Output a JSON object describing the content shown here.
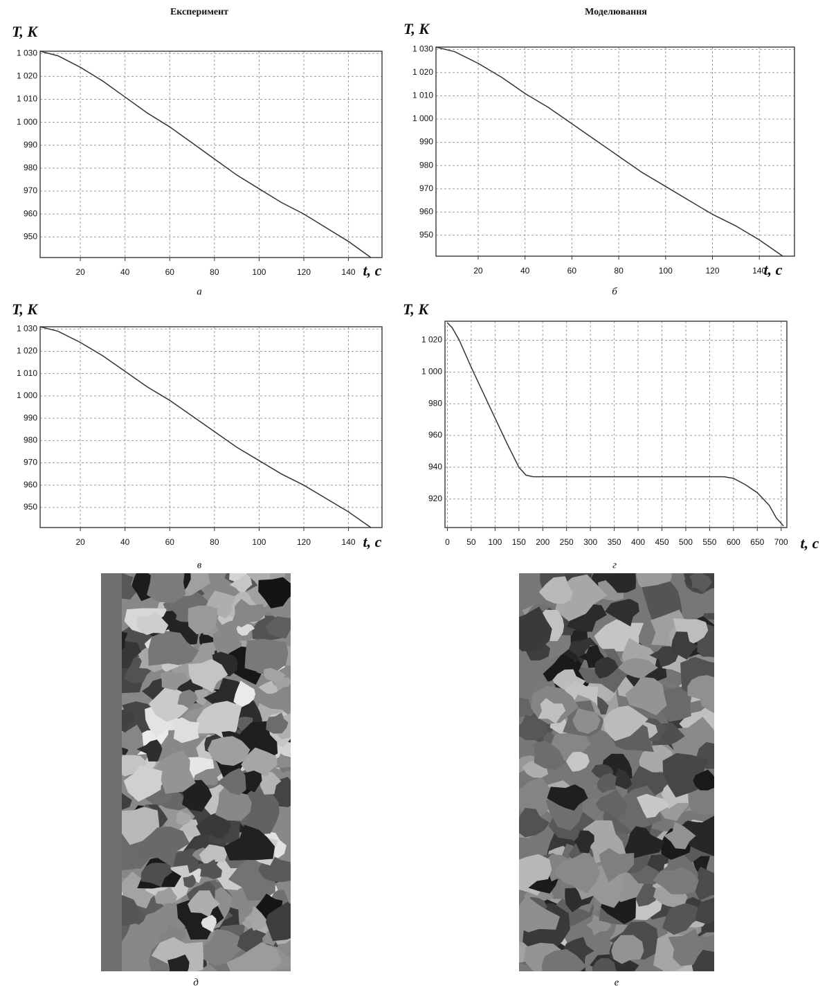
{
  "headings": [
    "Експеримент",
    "Моделювання"
  ],
  "chart_data": [
    {
      "type": "line",
      "caption": "а",
      "y_label": "T, K",
      "x_label": "t, с",
      "grid": true,
      "x": [
        2,
        10,
        20,
        30,
        40,
        50,
        60,
        70,
        80,
        90,
        100,
        110,
        120,
        130,
        140,
        150
      ],
      "series": [
        {
          "color": "#333333",
          "values": [
            1031,
            1029,
            1024,
            1018,
            1011,
            1004,
            998,
            991,
            984,
            977,
            971,
            965,
            960,
            954,
            948,
            941
          ]
        }
      ],
      "xlim": [
        2,
        155
      ],
      "ylim": [
        941,
        1031
      ],
      "xticks": [
        20,
        40,
        60,
        80,
        100,
        120,
        140
      ],
      "yticks": [
        950,
        960,
        970,
        980,
        990,
        {
          "value": 1000,
          "label": "1 000"
        },
        {
          "value": 1010,
          "label": "1 010"
        },
        {
          "value": 1020,
          "label": "1 020"
        },
        {
          "value": 1030,
          "label": "1 030"
        }
      ]
    },
    {
      "type": "line",
      "caption": "б",
      "y_label": "T, K",
      "x_label": "t, с",
      "grid": true,
      "x": [
        2,
        10,
        20,
        30,
        40,
        50,
        60,
        70,
        80,
        90,
        100,
        110,
        120,
        130,
        140,
        150
      ],
      "series": [
        {
          "color": "#333333",
          "values": [
            1031,
            1029,
            1024,
            1018,
            1011,
            1005,
            998,
            991,
            984,
            977,
            971,
            965,
            959,
            954,
            948,
            941
          ]
        }
      ],
      "xlim": [
        2,
        155
      ],
      "ylim": [
        941,
        1031
      ],
      "xticks": [
        20,
        40,
        60,
        80,
        100,
        120,
        140
      ],
      "yticks": [
        950,
        960,
        970,
        980,
        990,
        {
          "value": 1000,
          "label": "1 000"
        },
        {
          "value": 1010,
          "label": "1 010"
        },
        {
          "value": 1020,
          "label": "1 020"
        },
        {
          "value": 1030,
          "label": "1 030"
        }
      ]
    },
    {
      "type": "line",
      "caption": "в",
      "y_label": "T, K",
      "x_label": "t, с",
      "grid": true,
      "x": [
        2,
        10,
        20,
        30,
        40,
        50,
        60,
        70,
        80,
        90,
        100,
        110,
        120,
        130,
        140,
        150
      ],
      "series": [
        {
          "color": "#333333",
          "values": [
            1031,
            1029,
            1024,
            1018,
            1011,
            1004,
            998,
            991,
            984,
            977,
            971,
            965,
            960,
            954,
            948,
            941
          ]
        }
      ],
      "xlim": [
        2,
        155
      ],
      "ylim": [
        941,
        1031
      ],
      "xticks": [
        20,
        40,
        60,
        80,
        100,
        120,
        140
      ],
      "yticks": [
        950,
        960,
        970,
        980,
        990,
        {
          "value": 1000,
          "label": "1 000"
        },
        {
          "value": 1010,
          "label": "1 010"
        },
        {
          "value": 1020,
          "label": "1 020"
        },
        {
          "value": 1030,
          "label": "1 030"
        }
      ]
    },
    {
      "type": "line",
      "caption": "г",
      "y_label": "T, K",
      "x_label": "t, с",
      "grid": true,
      "x": [
        0,
        10,
        25,
        50,
        75,
        100,
        125,
        150,
        165,
        180,
        200,
        300,
        400,
        500,
        580,
        600,
        625,
        650,
        675,
        690,
        705
      ],
      "series": [
        {
          "color": "#333333",
          "values": [
            1031,
            1028,
            1020,
            1003,
            987,
            971,
            955,
            940,
            935,
            934,
            934,
            934,
            934,
            934,
            934,
            933,
            929,
            924,
            916,
            908,
            903
          ]
        }
      ],
      "xlim": [
        -5,
        712
      ],
      "ylim": [
        902,
        1032
      ],
      "xticks": [
        0,
        50,
        100,
        150,
        200,
        250,
        300,
        350,
        400,
        450,
        500,
        550,
        600,
        650,
        700
      ],
      "yticks": [
        920,
        940,
        960,
        980,
        {
          "value": 1000,
          "label": "1 000"
        },
        {
          "value": 1020,
          "label": "1 020"
        }
      ]
    }
  ],
  "images": [
    {
      "caption": "д"
    },
    {
      "caption": "е"
    }
  ]
}
